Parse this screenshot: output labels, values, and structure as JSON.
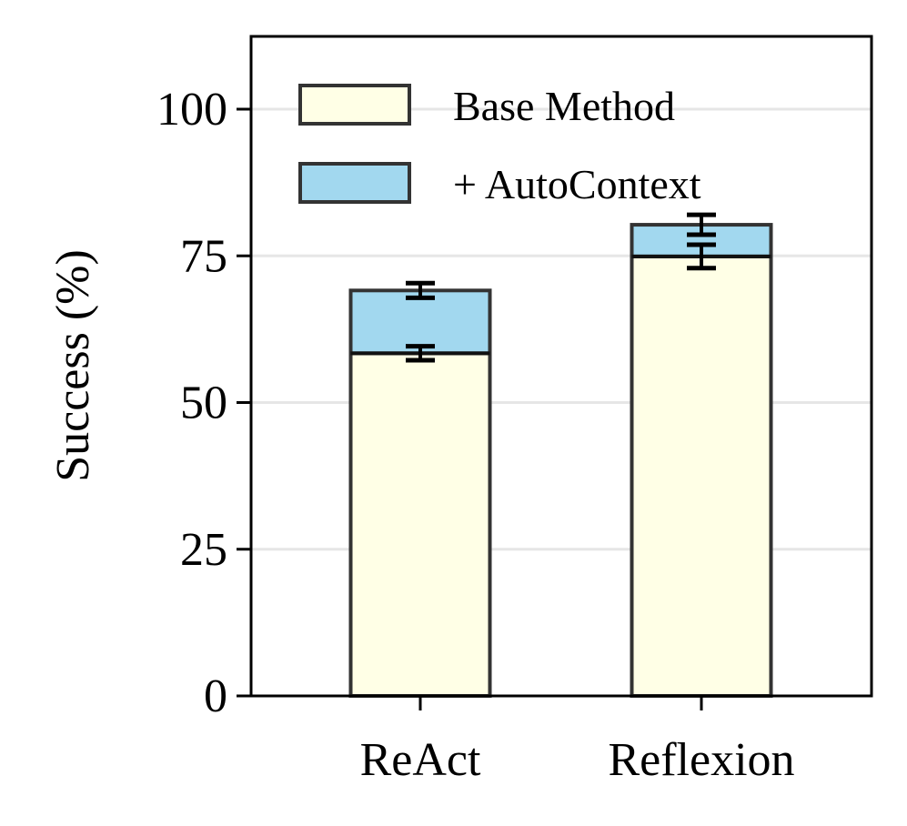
{
  "chart_data": {
    "type": "bar",
    "stacked": true,
    "title": "",
    "xlabel": "",
    "ylabel": "Success (%)",
    "ylim": [
      0,
      112.4
    ],
    "yticks": [
      0,
      25,
      50,
      75,
      100
    ],
    "grid": "y",
    "categories": [
      "ReAct",
      "Reflexion"
    ],
    "series": [
      {
        "name": "Base Method",
        "color": "#ffffe6",
        "values": [
          58.4,
          74.9
        ],
        "errors": [
          1.2,
          2.0
        ]
      },
      {
        "name": "+ AutoContext",
        "color": "#a2d8ef",
        "values": [
          10.7,
          5.4
        ],
        "totals": [
          69.1,
          80.3
        ],
        "errors": [
          1.25,
          1.7
        ]
      }
    ],
    "legend_position": "top-left"
  }
}
